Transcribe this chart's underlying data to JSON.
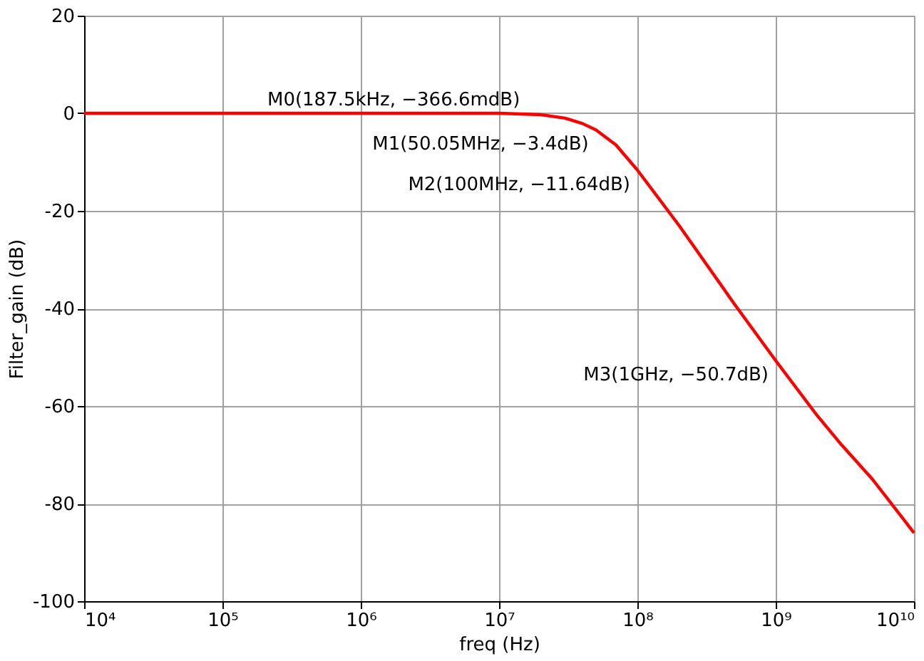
{
  "chart_data": {
    "type": "line",
    "xlabel": "freq (Hz)",
    "ylabel": "Filter_gain (dB)",
    "log": "x",
    "grid": true,
    "marker": "none",
    "line_style": "solid",
    "xlim": [
      10000,
      10000000000
    ],
    "xticks": [
      {
        "value": 10000,
        "label": "10⁴"
      },
      {
        "value": 100000,
        "label": "10⁵"
      },
      {
        "value": 1000000,
        "label": "10⁶"
      },
      {
        "value": 10000000,
        "label": "10⁷"
      },
      {
        "value": 100000000,
        "label": "10⁸"
      },
      {
        "value": 1000000000,
        "label": "10⁹"
      },
      {
        "value": 10000000000,
        "label": "10¹⁰"
      }
    ],
    "ylim": [
      -100,
      20
    ],
    "yticks": [
      -100,
      -80,
      -60,
      -40,
      -20,
      0,
      20
    ],
    "x": [
      10000,
      1000000,
      10000000,
      20000000,
      30000000,
      40000000,
      50050000,
      70000000,
      100000000,
      200000000,
      500000000,
      1000000000,
      2000000000,
      3000000000,
      5000000000,
      10000000000
    ],
    "series": [
      {
        "color": "#ff0000",
        "values": [
          0,
          0,
          0,
          -0.3,
          -1.0,
          -2.1,
          -3.4,
          -6.5,
          -11.64,
          -23,
          -39,
          -50.7,
          -62,
          -68,
          -75,
          -86
        ]
      }
    ],
    "annotations": [
      {
        "text": "M0(187.5kHz, −366.6mdB)",
        "x": 187500,
        "y": -0.3666
      },
      {
        "text": "M1(50.05MHz, −3.4dB)",
        "x": 50050000,
        "y": -3.4
      },
      {
        "text": "M2(100MHz, −11.64dB)",
        "x": 100000000,
        "y": -11.64
      },
      {
        "text": "M3(1GHz, −50.7dB)",
        "x": 1000000000,
        "y": -50.7
      }
    ]
  }
}
